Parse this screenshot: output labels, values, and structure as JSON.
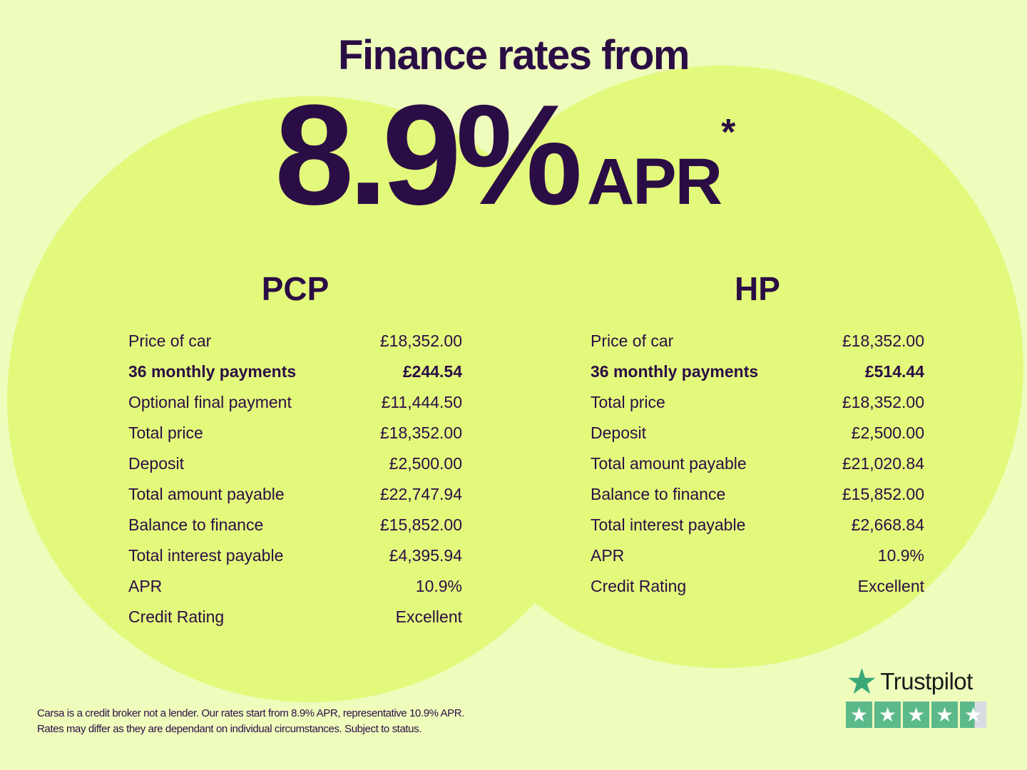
{
  "title": "Finance rates from",
  "headline": {
    "rate": "8.9%",
    "unit": "APR",
    "asterisk": "*"
  },
  "colors": {
    "background": "#eefcbc",
    "circle": "#e3f97c",
    "text": "#2b0d45",
    "trustpilot": "#5bb98a"
  },
  "pcp": {
    "heading": "PCP",
    "rows": [
      {
        "label": "Price of car",
        "value": "£18,352.00"
      },
      {
        "label": "36 monthly payments",
        "value": "£244.54"
      },
      {
        "label": "Optional final payment",
        "value": "£11,444.50"
      },
      {
        "label": "Total price",
        "value": "£18,352.00"
      },
      {
        "label": "Deposit",
        "value": "£2,500.00"
      },
      {
        "label": "Total amount payable",
        "value": "£22,747.94"
      },
      {
        "label": "Balance to finance",
        "value": "£15,852.00"
      },
      {
        "label": "Total interest payable",
        "value": "£4,395.94"
      },
      {
        "label": "APR",
        "value": "10.9%"
      },
      {
        "label": "Credit Rating",
        "value": "Excellent"
      }
    ]
  },
  "hp": {
    "heading": "HP",
    "rows": [
      {
        "label": "Price of car",
        "value": "£18,352.00"
      },
      {
        "label": "36 monthly payments",
        "value": "£514.44"
      },
      {
        "label": "Total price",
        "value": "£18,352.00"
      },
      {
        "label": "Deposit",
        "value": "£2,500.00"
      },
      {
        "label": "Total amount payable",
        "value": "£21,020.84"
      },
      {
        "label": "Balance to finance",
        "value": "£15,852.00"
      },
      {
        "label": "Total interest payable",
        "value": "£2,668.84"
      },
      {
        "label": "APR",
        "value": "10.9%"
      },
      {
        "label": "Credit Rating",
        "value": "Excellent"
      }
    ]
  },
  "footer": {
    "line1": "Carsa is a credit broker not a lender. Our rates start from 8.9% APR, representative 10.9% APR.",
    "line2": "Rates may differ as they are dependant on individual circumstances. Subject to status."
  },
  "trustpilot": {
    "label": "Trustpilot",
    "rating": 4.5,
    "max": 5
  }
}
